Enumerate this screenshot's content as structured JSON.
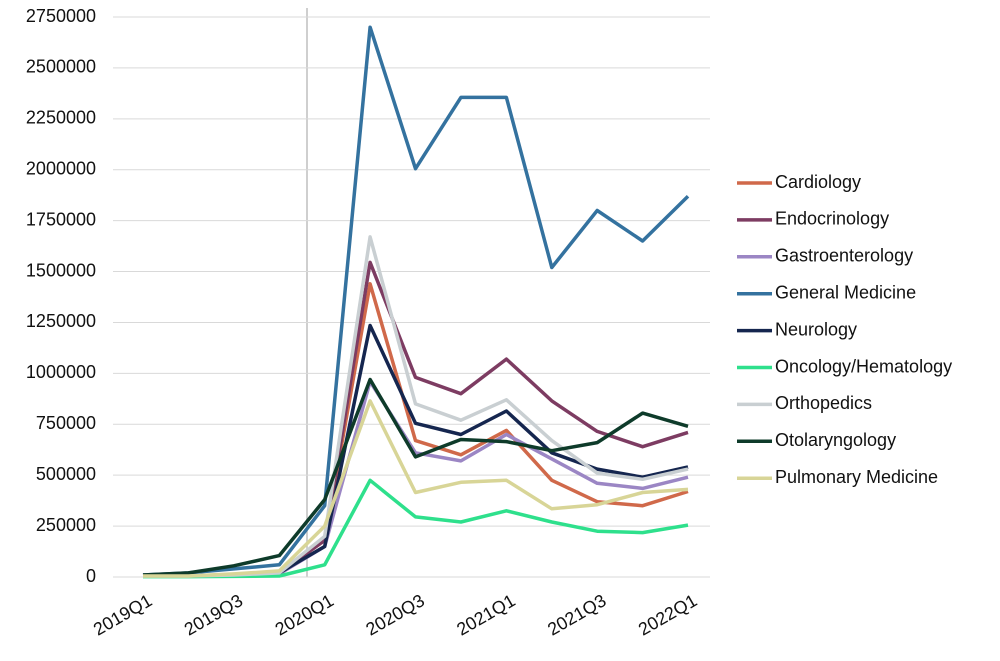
{
  "chart_data": {
    "type": "line",
    "categories": [
      "2019Q1",
      null,
      "2019Q3",
      null,
      "2020Q1",
      null,
      "2020Q3",
      null,
      "2021Q1",
      null,
      "2021Q3",
      null,
      "2022Q1"
    ],
    "ylim": [
      0,
      2750000
    ],
    "yticks": [
      0,
      250000,
      500000,
      750000,
      1000000,
      1250000,
      1500000,
      1750000,
      2000000,
      2250000,
      2500000,
      2750000
    ],
    "grid": true,
    "legend": "right",
    "series": [
      {
        "name": "Cardiology",
        "color": "#d0694a",
        "values": [
          5000,
          5000,
          10000,
          20000,
          180000,
          1440000,
          670000,
          600000,
          720000,
          475000,
          370000,
          350000,
          420000
        ]
      },
      {
        "name": "Endocrinology",
        "color": "#7d3c62",
        "values": [
          5000,
          5000,
          10000,
          20000,
          180000,
          1545000,
          980000,
          900000,
          1070000,
          865000,
          715000,
          640000,
          710000
        ]
      },
      {
        "name": "Gastroenterology",
        "color": "#9b86c4",
        "values": [
          5000,
          5000,
          10000,
          15000,
          150000,
          960000,
          610000,
          570000,
          700000,
          580000,
          460000,
          435000,
          490000
        ]
      },
      {
        "name": "General Medicine",
        "color": "#34729f",
        "values": [
          10000,
          20000,
          40000,
          60000,
          350000,
          2700000,
          2005000,
          2355000,
          2355000,
          1520000,
          1800000,
          1650000,
          1870000
        ]
      },
      {
        "name": "Neurology",
        "color": "#15264f",
        "values": [
          5000,
          5000,
          10000,
          20000,
          150000,
          1235000,
          755000,
          700000,
          815000,
          610000,
          530000,
          490000,
          540000
        ]
      },
      {
        "name": "Oncology/Hematology",
        "color": "#2ee08c",
        "values": [
          2000,
          2000,
          3000,
          5000,
          60000,
          475000,
          295000,
          270000,
          325000,
          270000,
          225000,
          218000,
          255000
        ]
      },
      {
        "name": "Orthopedics",
        "color": "#c9cfd2",
        "values": [
          5000,
          5000,
          10000,
          20000,
          200000,
          1670000,
          850000,
          770000,
          870000,
          670000,
          510000,
          480000,
          530000
        ]
      },
      {
        "name": "Otolaryngology",
        "color": "#0e3b2a",
        "values": [
          10000,
          20000,
          55000,
          105000,
          380000,
          970000,
          590000,
          675000,
          665000,
          620000,
          660000,
          805000,
          740000
        ]
      },
      {
        "name": "Pulmonary Medicine",
        "color": "#d8d597",
        "values": [
          5000,
          5000,
          15000,
          30000,
          250000,
          865000,
          415000,
          465000,
          475000,
          335000,
          355000,
          415000,
          430000
        ]
      }
    ]
  }
}
